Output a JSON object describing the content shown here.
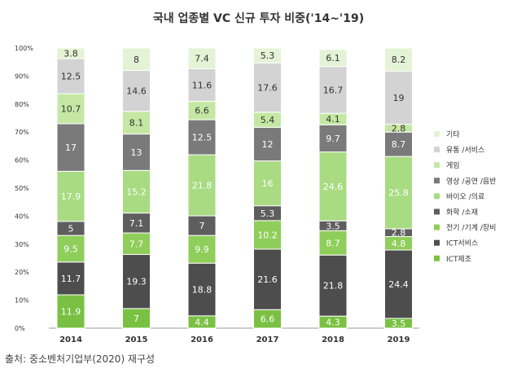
{
  "title": "국내 업종별 VC 신규 투자 비중('14~'19)",
  "source": "출처: 중소벤처기업부(2020) 재구성",
  "chart_data": {
    "type": "bar",
    "stacked": true,
    "categories": [
      "2014",
      "2015",
      "2016",
      "2017",
      "2018",
      "2019"
    ],
    "ylim": [
      0,
      100
    ],
    "yticks": [
      "0%",
      "10%",
      "20%",
      "30%",
      "40%",
      "50%",
      "60%",
      "70%",
      "80%",
      "90%",
      "100%"
    ],
    "grid": false,
    "legend_position": "right",
    "series": [
      {
        "name": "ICT제조",
        "color": "#7ac143",
        "label_color": "#ffffff",
        "values": [
          11.9,
          7,
          4.4,
          6.6,
          4.3,
          3.5
        ]
      },
      {
        "name": "ICT서비스",
        "color": "#4d4d4d",
        "label_color": "#ffffff",
        "values": [
          11.7,
          19.3,
          18.8,
          21.6,
          21.8,
          24.4
        ]
      },
      {
        "name": "전기 /기계 /장비",
        "color": "#8fce5a",
        "label_color": "#ffffff",
        "values": [
          9.5,
          7.7,
          9.9,
          10.2,
          8.7,
          4.8
        ]
      },
      {
        "name": "화학 /소재",
        "color": "#5e5e5e",
        "label_color": "#ffffff",
        "values": [
          5,
          7.1,
          7,
          5.3,
          3.5,
          2.8
        ]
      },
      {
        "name": "바이오 /의료",
        "color": "#a8db82",
        "label_color": "#ffffff",
        "values": [
          17.9,
          15.2,
          21.8,
          16,
          24.6,
          25.8
        ]
      },
      {
        "name": "영상 /공연 /음반",
        "color": "#7a7a7a",
        "label_color": "#ffffff",
        "values": [
          17,
          13,
          12.5,
          12,
          9.7,
          8.7
        ]
      },
      {
        "name": "게임",
        "color": "#c4e8a4",
        "label_color": "#333333",
        "values": [
          10.7,
          8.1,
          6.6,
          5.4,
          4.1,
          2.8
        ]
      },
      {
        "name": "유통 /서비스",
        "color": "#d3d3d3",
        "label_color": "#333333",
        "values": [
          12.5,
          14.6,
          11.6,
          17.6,
          16.7,
          19
        ]
      },
      {
        "name": "기타",
        "color": "#e4f2d6",
        "label_color": "#333333",
        "values": [
          3.8,
          8,
          7.4,
          5.3,
          6.1,
          8.2
        ]
      }
    ],
    "legend_order": [
      "기타",
      "유통 /서비스",
      "게임",
      "영상 /공연 /음반",
      "바이오 /의료",
      "화학 /소재",
      "전기 /기계 /장비",
      "ICT서비스",
      "ICT제조"
    ]
  }
}
